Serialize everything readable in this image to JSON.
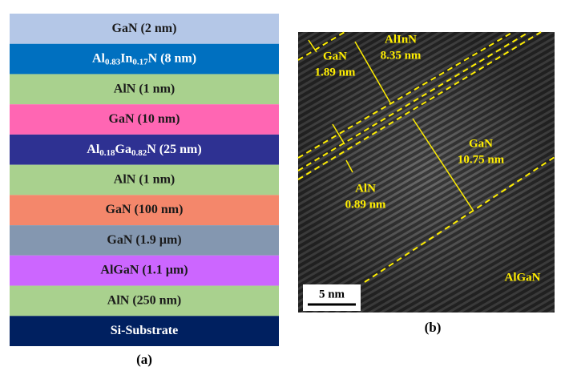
{
  "stack": {
    "caption": "(a)",
    "layers": [
      {
        "color": "#b4c7e7",
        "text_color": "#1a1a1a",
        "label": [
          {
            "text": "GaN (2 nm)"
          }
        ]
      },
      {
        "color": "#0070c0",
        "text_color": "#ffffff",
        "label": [
          {
            "text": "Al"
          },
          {
            "sub": "0.83"
          },
          {
            "text": "In"
          },
          {
            "sub": "0.17"
          },
          {
            "text": "N (8  nm)"
          }
        ]
      },
      {
        "color": "#a9d18e",
        "text_color": "#1a1a1a",
        "label": [
          {
            "text": "AlN (1 nm)"
          }
        ]
      },
      {
        "color": "#ff66b3",
        "text_color": "#1a1a1a",
        "label": [
          {
            "text": "GaN (10 nm)"
          }
        ]
      },
      {
        "color": "#2e3192",
        "text_color": "#ffffff",
        "label": [
          {
            "text": "Al"
          },
          {
            "sub": "0.18"
          },
          {
            "text": "Ga"
          },
          {
            "sub": "0.82"
          },
          {
            "text": "N (25 nm)"
          }
        ]
      },
      {
        "color": "#a9d18e",
        "text_color": "#1a1a1a",
        "label": [
          {
            "text": "AlN (1 nm)"
          }
        ]
      },
      {
        "color": "#f4876b",
        "text_color": "#1a1a1a",
        "label": [
          {
            "text": "GaN (100 nm)"
          }
        ]
      },
      {
        "color": "#8497b0",
        "text_color": "#1a1a1a",
        "label": [
          {
            "text": "GaN (1.9 µm)"
          }
        ]
      },
      {
        "color": "#cc66ff",
        "text_color": "#1a1a1a",
        "label": [
          {
            "text": "AlGaN (1.1 µm)"
          }
        ]
      },
      {
        "color": "#a9d18e",
        "text_color": "#1a1a1a",
        "label": [
          {
            "text": "AlN (250 nm)"
          }
        ]
      },
      {
        "color": "#002060",
        "text_color": "#ffffff",
        "label": [
          {
            "text": "Si-Substrate"
          }
        ]
      }
    ]
  },
  "tem": {
    "caption": "(b)",
    "scale_bar": "5 nm",
    "annotations": [
      {
        "lines": [
          "GaN",
          "1.89 nm"
        ]
      },
      {
        "lines": [
          "AlInN",
          "8.35 nm"
        ]
      },
      {
        "lines": [
          "GaN",
          "10.75 nm"
        ]
      },
      {
        "lines": [
          "AlN",
          "0.89 nm"
        ]
      },
      {
        "lines": [
          "AlGaN"
        ]
      }
    ]
  }
}
